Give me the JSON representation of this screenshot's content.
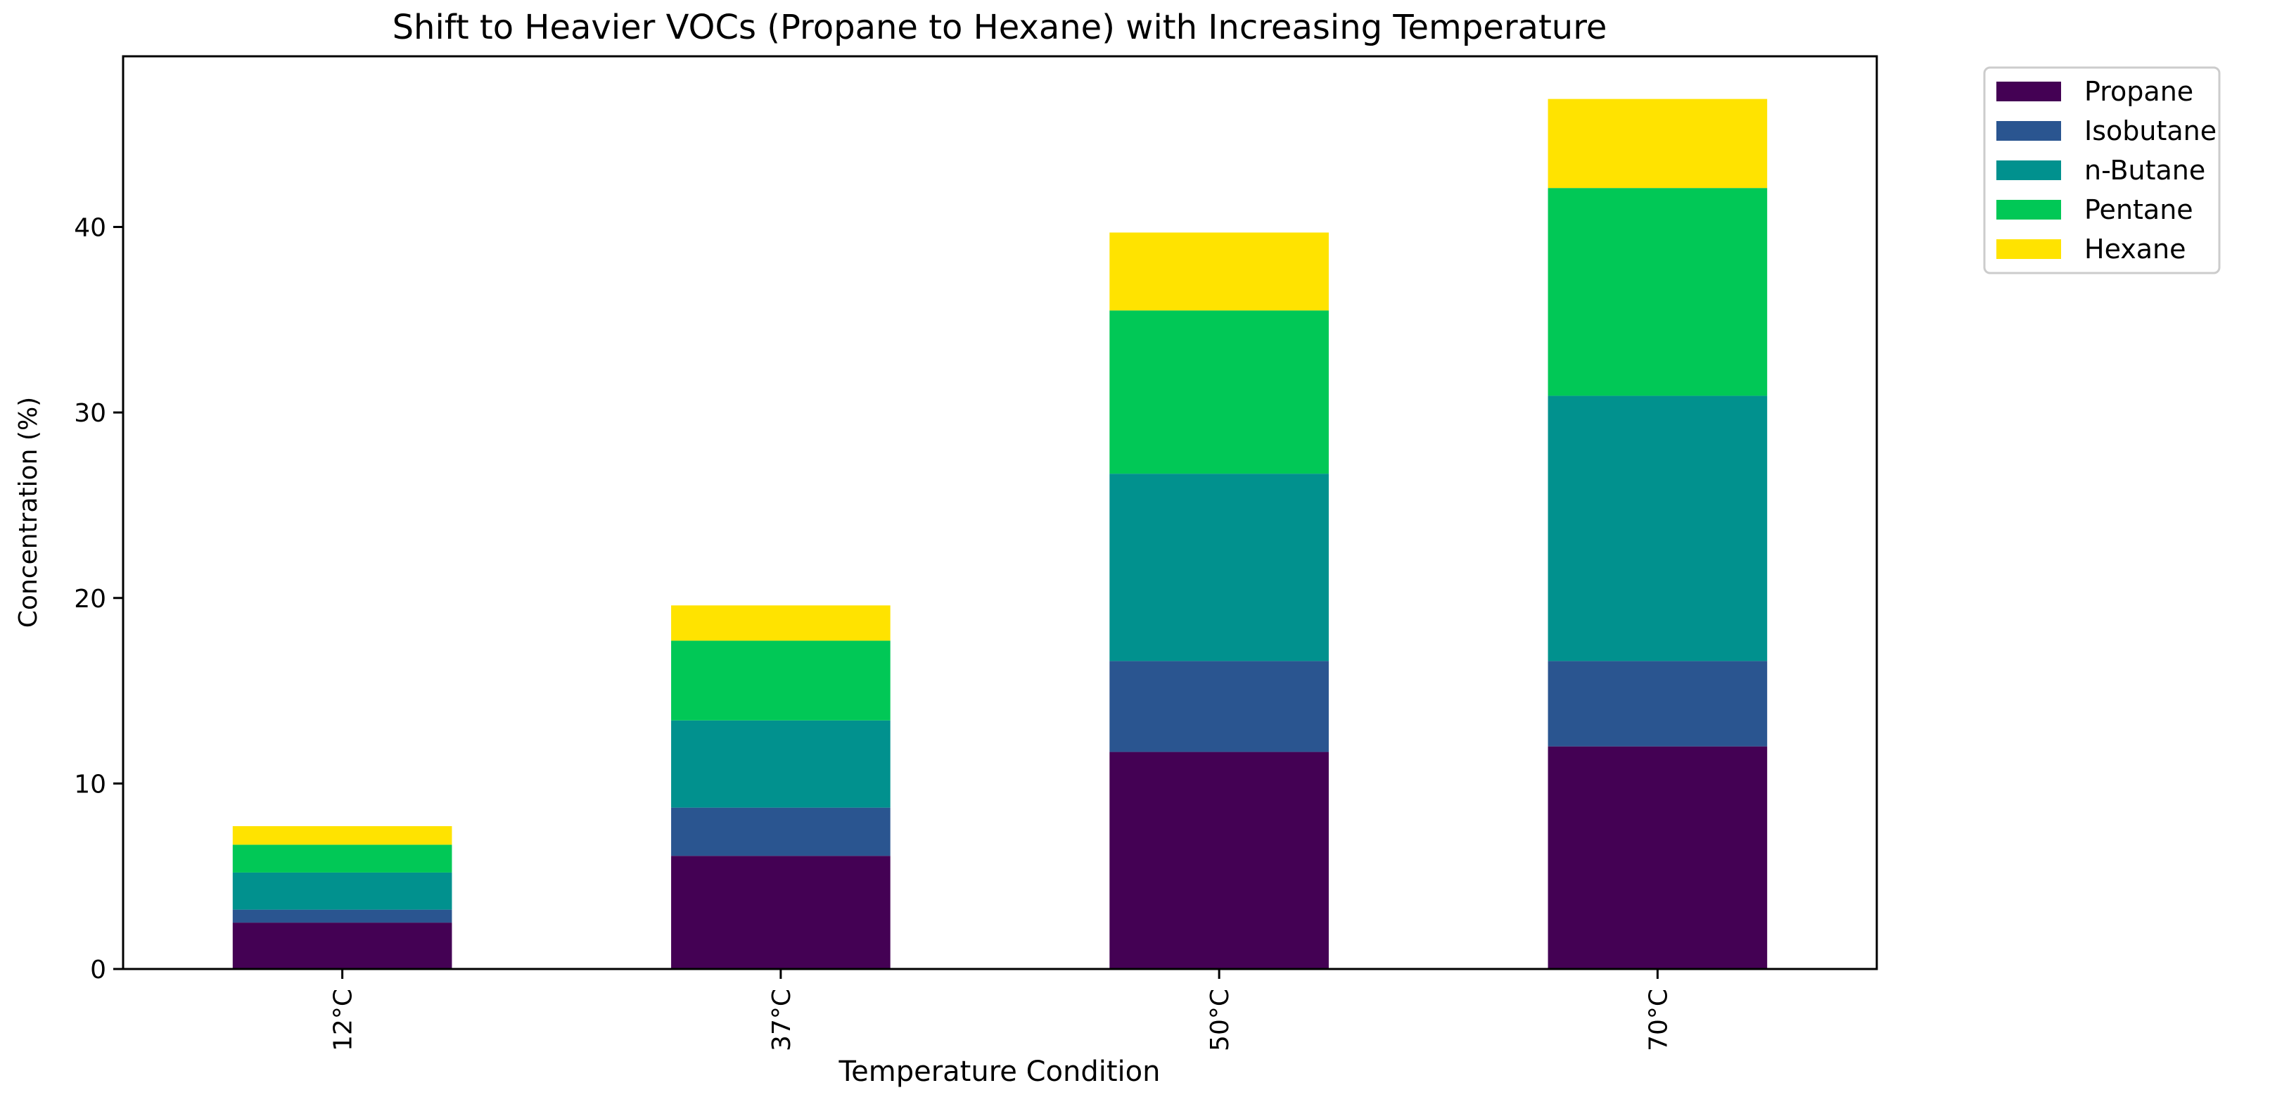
{
  "chart_data": {
    "type": "bar",
    "stacked": true,
    "title": "Shift to Heavier VOCs (Propane to Hexane) with Increasing Temperature",
    "xlabel": "Temperature Condition",
    "ylabel": "Concentration (%)",
    "categories": [
      "12°C",
      "37°C",
      "50°C",
      "70°C"
    ],
    "ylim": [
      0,
      49.2
    ],
    "yticks": [
      0,
      10,
      20,
      30,
      40
    ],
    "grid": false,
    "legend_position": "outside-top-right",
    "series": [
      {
        "name": "Propane",
        "color": "#440154",
        "values": [
          2.5,
          6.1,
          11.7,
          12.0
        ]
      },
      {
        "name": "Isobutane",
        "color": "#2a5590",
        "values": [
          0.7,
          2.6,
          4.9,
          4.6
        ]
      },
      {
        "name": "n-Butane",
        "color": "#01918e",
        "values": [
          2.0,
          4.7,
          10.1,
          14.3
        ]
      },
      {
        "name": "Pentane",
        "color": "#01c856",
        "values": [
          1.5,
          4.3,
          8.8,
          11.2
        ]
      },
      {
        "name": "Hexane",
        "color": "#ffe300",
        "values": [
          1.0,
          1.9,
          4.2,
          4.8
        ]
      }
    ]
  }
}
